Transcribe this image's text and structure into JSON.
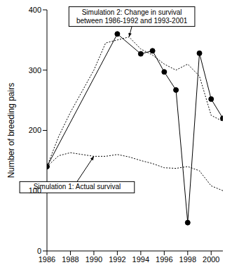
{
  "chart_data": {
    "type": "line",
    "y_label": "Number of breeding pairs",
    "xlim": [
      1986,
      2001
    ],
    "xticks": [
      1986,
      1988,
      1990,
      1992,
      1994,
      1996,
      1998,
      2000
    ],
    "ylim": [
      0,
      400
    ],
    "yticks": [
      0,
      100,
      200,
      300,
      400
    ],
    "grid": false,
    "series": [
      {
        "x": [
          1986,
          1992,
          1994,
          1995,
          1996,
          1997,
          1998,
          1999,
          2000,
          2001
        ],
        "values": [
          140,
          360,
          327,
          332,
          297,
          267,
          47,
          328,
          252,
          220
        ],
        "color": "#000000",
        "line_style": "solid",
        "marker": "circle"
      },
      {
        "x": [
          1986,
          1987,
          1988,
          1989,
          1990,
          1991,
          1992,
          1993,
          1994,
          1995,
          1996,
          1997,
          1998,
          1999,
          2000,
          2001
        ],
        "values": [
          140,
          190,
          230,
          265,
          300,
          345,
          350,
          355,
          335,
          325,
          310,
          300,
          310,
          290,
          225,
          215
        ],
        "color": "#000000",
        "line_style": "dotted",
        "marker": "none"
      },
      {
        "x": [
          1986,
          1987,
          1988,
          1989,
          1990,
          1991,
          1992,
          1993,
          1994,
          1995,
          1996,
          1997,
          1998,
          1999,
          2000,
          2001
        ],
        "values": [
          140,
          158,
          163,
          160,
          157,
          157,
          160,
          156,
          150,
          145,
          138,
          137,
          140,
          133,
          108,
          100
        ],
        "color": "#000000",
        "line_style": "dotted",
        "marker": "none"
      }
    ],
    "annotations": [
      {
        "text": "Simulation 2: Change in survival\nbetween 1986-1992 and 1993-2001",
        "xy": [
          1993,
          355
        ]
      },
      {
        "text": "Simulation 1: Actual survival",
        "xy": [
          1990,
          157
        ]
      }
    ]
  }
}
